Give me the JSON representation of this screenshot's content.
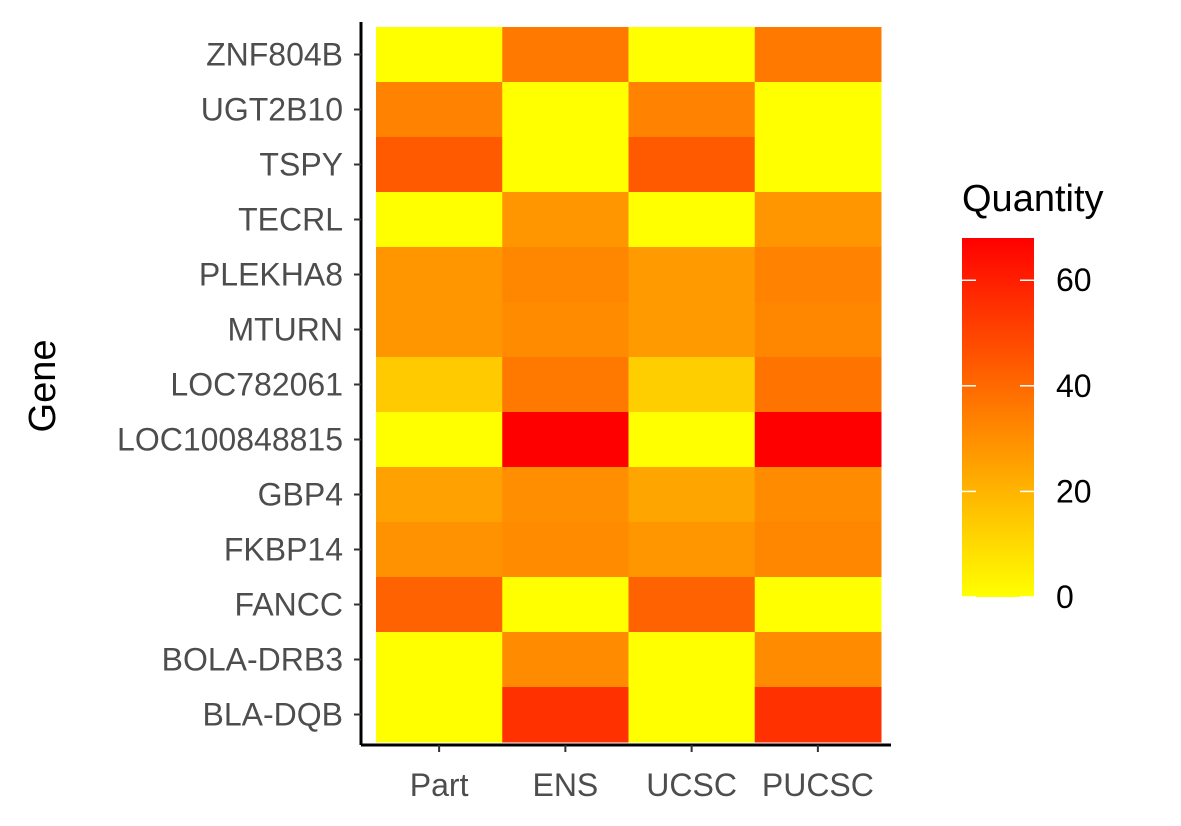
{
  "chart_data": {
    "type": "heatmap",
    "title": "",
    "xlabel": "",
    "ylabel": "Gene",
    "x_categories": [
      "Part",
      "ENS",
      "UCSC",
      "PUCSC"
    ],
    "y_categories": [
      "ZNF804B",
      "UGT2B10",
      "TSPY",
      "TECRL",
      "PLEKHA8",
      "MTURN",
      "LOC782061",
      "LOC100848815",
      "GBP4",
      "FKBP14",
      "FANCC",
      "BOLA-DRB3",
      "BLA-DQB"
    ],
    "values": [
      [
        0,
        36,
        0,
        36
      ],
      [
        33,
        0,
        33,
        0
      ],
      [
        44,
        0,
        44,
        0
      ],
      [
        0,
        28,
        0,
        28
      ],
      [
        28,
        32,
        27,
        33
      ],
      [
        28,
        31,
        27,
        32
      ],
      [
        14,
        36,
        13,
        37
      ],
      [
        0,
        68,
        0,
        68
      ],
      [
        25,
        30,
        24,
        31
      ],
      [
        29,
        31,
        28,
        32
      ],
      [
        42,
        0,
        42,
        0
      ],
      [
        0,
        31,
        0,
        31
      ],
      [
        0,
        55,
        0,
        55
      ]
    ],
    "legend": {
      "title": "Quantity",
      "ticks": [
        0,
        20,
        40,
        60
      ],
      "range": [
        0,
        68
      ],
      "low_color": "#ffff00",
      "high_color": "#ff0000",
      "placement": "right"
    }
  }
}
